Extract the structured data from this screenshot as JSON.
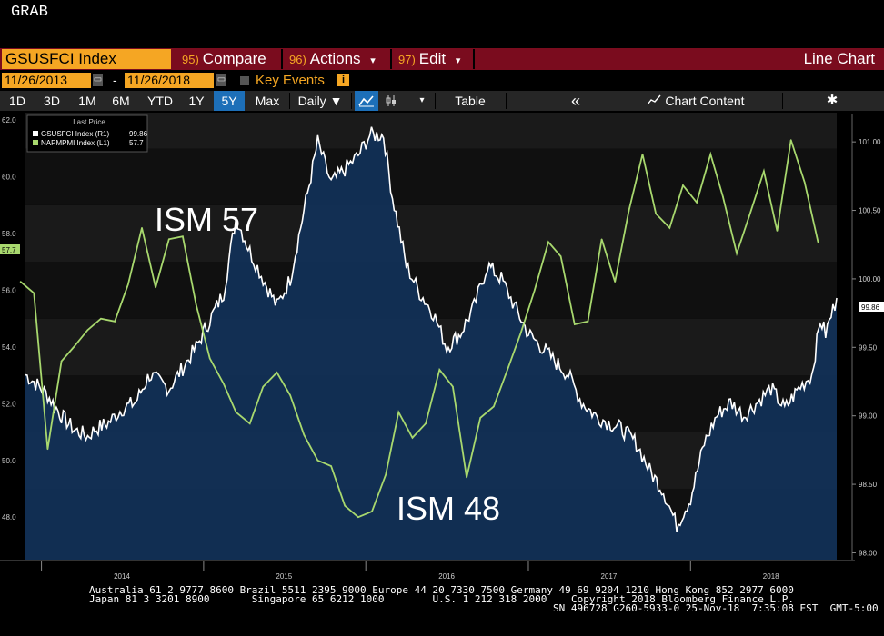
{
  "window": {
    "title": "GRAB"
  },
  "command_bar": {
    "ticker": "GSUSFCI Index",
    "menus": [
      {
        "num": "95)",
        "label": "Compare"
      },
      {
        "num": "96)",
        "label": "Actions"
      },
      {
        "num": "97)",
        "label": "Edit"
      }
    ],
    "dropdown_marker": "▾",
    "view_label": "Line Chart"
  },
  "date_range": {
    "start": "11/26/2013",
    "dash": "-",
    "end": "11/26/2018",
    "key_events_label": "Key Events",
    "info_glyph": "i"
  },
  "toolbar": {
    "ranges": [
      "1D",
      "3D",
      "1M",
      "6M",
      "YTD",
      "1Y",
      "5Y",
      "Max"
    ],
    "active_range": "5Y",
    "frequency": "Daily ▼",
    "table_label": "Table",
    "collapse_glyph": "«",
    "chart_content_label": "Chart Content",
    "settings_glyph": "✱"
  },
  "legend": {
    "header": "Last Price",
    "items": [
      {
        "name": "GSUSFCI Index  (R1)",
        "value": "99.86",
        "color": "#ffffff"
      },
      {
        "name": "NAPMPMI Index  (L1)",
        "value": "57.7",
        "color": "#a8d86e"
      }
    ]
  },
  "annotations": {
    "top": "ISM 57",
    "bottom": "ISM 48"
  },
  "footer": {
    "line1": "Australia 61 2 9777 8600 Brazil 5511 2395 9000 Europe 44 20 7330 7500 Germany 49 69 9204 1210 Hong Kong 852 2977 6000",
    "line2": "Japan 81 3 3201 8900       Singapore 65 6212 1000        U.S. 1 212 318 2000",
    "copyright": "Copyright 2018 Bloomberg Finance L.P.",
    "line3": "SN 496728 G260-5933-0 25-Nov-18  7:35:08 EST  GMT-5:00"
  },
  "colors": {
    "ism_line": "#a8d86e",
    "fci_line": "#ffffff",
    "fci_fill": "#12325a",
    "accent_orange": "#f5a623",
    "command_red": "#7a0c1e",
    "active_blue": "#1d6fb8"
  },
  "chart_data": {
    "type": "line",
    "x_axis": {
      "ticks": [
        "2014",
        "2015",
        "2016",
        "2017",
        "2018"
      ],
      "range": [
        "2013-11-26",
        "2018-11-26"
      ]
    },
    "y_left": {
      "ticks": [
        "48.0",
        "50.0",
        "52.0",
        "54.0",
        "56.0",
        "58.0",
        "60.0",
        "62.0"
      ],
      "range": [
        46.5,
        62.2
      ],
      "last_label": "57.7"
    },
    "y_right": {
      "ticks": [
        "98.00",
        "98.50",
        "99.00",
        "99.50",
        "100.00",
        "100.50",
        "101.00"
      ],
      "range": [
        97.95,
        101.2
      ],
      "last_label": "99.86"
    },
    "grid": "horizontal bands",
    "legend_position": "top-left",
    "series": [
      {
        "name": "NAPMPMI Index",
        "axis": "left",
        "last": 57.7,
        "points": [
          [
            "2013-11",
            56.3
          ],
          [
            "2013-12",
            55.9
          ],
          [
            "2014-01",
            50.4
          ],
          [
            "2014-02",
            53.5
          ],
          [
            "2014-03",
            54.0
          ],
          [
            "2014-04",
            54.6
          ],
          [
            "2014-05",
            55.0
          ],
          [
            "2014-06",
            54.9
          ],
          [
            "2014-07",
            56.2
          ],
          [
            "2014-08",
            58.2
          ],
          [
            "2014-09",
            56.1
          ],
          [
            "2014-10",
            57.8
          ],
          [
            "2014-11",
            57.9
          ],
          [
            "2014-12",
            55.5
          ],
          [
            "2015-01",
            53.6
          ],
          [
            "2015-02",
            52.7
          ],
          [
            "2015-03",
            51.7
          ],
          [
            "2015-04",
            51.3
          ],
          [
            "2015-05",
            52.6
          ],
          [
            "2015-06",
            53.1
          ],
          [
            "2015-07",
            52.3
          ],
          [
            "2015-08",
            50.9
          ],
          [
            "2015-09",
            50.0
          ],
          [
            "2015-10",
            49.8
          ],
          [
            "2015-11",
            48.4
          ],
          [
            "2015-12",
            48.0
          ],
          [
            "2016-01",
            48.2
          ],
          [
            "2016-02",
            49.5
          ],
          [
            "2016-03",
            51.7
          ],
          [
            "2016-04",
            50.8
          ],
          [
            "2016-05",
            51.3
          ],
          [
            "2016-06",
            53.2
          ],
          [
            "2016-07",
            52.6
          ],
          [
            "2016-08",
            49.4
          ],
          [
            "2016-09",
            51.5
          ],
          [
            "2016-10",
            51.9
          ],
          [
            "2016-11",
            53.2
          ],
          [
            "2016-12",
            54.5
          ],
          [
            "2017-01",
            56.0
          ],
          [
            "2017-02",
            57.7
          ],
          [
            "2017-03",
            57.2
          ],
          [
            "2017-04",
            54.8
          ],
          [
            "2017-05",
            54.9
          ],
          [
            "2017-06",
            57.8
          ],
          [
            "2017-07",
            56.3
          ],
          [
            "2017-08",
            58.8
          ],
          [
            "2017-09",
            60.8
          ],
          [
            "2017-10",
            58.7
          ],
          [
            "2017-11",
            58.2
          ],
          [
            "2017-12",
            59.7
          ],
          [
            "2018-01",
            59.1
          ],
          [
            "2018-02",
            60.8
          ],
          [
            "2018-03",
            59.3
          ],
          [
            "2018-04",
            57.3
          ],
          [
            "2018-05",
            58.7
          ],
          [
            "2018-06",
            60.2
          ],
          [
            "2018-07",
            58.1
          ],
          [
            "2018-08",
            61.3
          ],
          [
            "2018-09",
            59.8
          ],
          [
            "2018-10",
            57.7
          ]
        ]
      },
      {
        "name": "GSUSFCI Index",
        "axis": "right",
        "last": 99.86,
        "points": [
          [
            "2013-11-26",
            99.3
          ],
          [
            "2013-12-15",
            99.25
          ],
          [
            "2014-01-15",
            99.15
          ],
          [
            "2014-02-15",
            99.0
          ],
          [
            "2014-03-15",
            98.9
          ],
          [
            "2014-04-15",
            98.85
          ],
          [
            "2014-05-01",
            98.9
          ],
          [
            "2014-06-01",
            98.95
          ],
          [
            "2014-07-01",
            99.05
          ],
          [
            "2014-08-01",
            99.1
          ],
          [
            "2014-09-01",
            99.3
          ],
          [
            "2014-10-15",
            99.2
          ],
          [
            "2014-11-15",
            99.35
          ],
          [
            "2014-12-15",
            99.5
          ],
          [
            "2015-01-15",
            99.7
          ],
          [
            "2015-02-15",
            99.9
          ],
          [
            "2015-03-15",
            100.45
          ],
          [
            "2015-04-15",
            100.2
          ],
          [
            "2015-05-15",
            100.0
          ],
          [
            "2015-06-15",
            99.8
          ],
          [
            "2015-07-15",
            100.0
          ],
          [
            "2015-08-15",
            100.5
          ],
          [
            "2015-09-15",
            101.0
          ],
          [
            "2015-10-15",
            100.7
          ],
          [
            "2015-11-15",
            100.8
          ],
          [
            "2015-12-15",
            100.9
          ],
          [
            "2016-01-10",
            101.05
          ],
          [
            "2016-02-10",
            101.05
          ],
          [
            "2016-03-01",
            100.6
          ],
          [
            "2016-04-01",
            100.1
          ],
          [
            "2016-05-01",
            99.9
          ],
          [
            "2016-06-01",
            99.75
          ],
          [
            "2016-07-01",
            99.5
          ],
          [
            "2016-08-01",
            99.6
          ],
          [
            "2016-09-01",
            99.8
          ],
          [
            "2016-10-01",
            100.1
          ],
          [
            "2016-11-01",
            100.0
          ],
          [
            "2016-12-01",
            99.8
          ],
          [
            "2017-01-01",
            99.6
          ],
          [
            "2017-02-01",
            99.5
          ],
          [
            "2017-03-01",
            99.4
          ],
          [
            "2017-04-01",
            99.3
          ],
          [
            "2017-05-01",
            99.1
          ],
          [
            "2017-06-01",
            99.0
          ],
          [
            "2017-07-01",
            98.95
          ],
          [
            "2017-08-01",
            98.9
          ],
          [
            "2017-09-01",
            98.8
          ],
          [
            "2017-10-01",
            98.6
          ],
          [
            "2017-11-01",
            98.45
          ],
          [
            "2017-12-01",
            98.2
          ],
          [
            "2018-01-01",
            98.4
          ],
          [
            "2018-02-01",
            98.8
          ],
          [
            "2018-03-01",
            99.0
          ],
          [
            "2018-04-01",
            99.1
          ],
          [
            "2018-05-01",
            99.0
          ],
          [
            "2018-06-01",
            99.1
          ],
          [
            "2018-07-01",
            99.2
          ],
          [
            "2018-08-01",
            99.05
          ],
          [
            "2018-09-01",
            99.2
          ],
          [
            "2018-10-01",
            99.3
          ],
          [
            "2018-10-20",
            99.7
          ],
          [
            "2018-11-01",
            99.6
          ],
          [
            "2018-11-26",
            99.86
          ]
        ]
      }
    ]
  }
}
